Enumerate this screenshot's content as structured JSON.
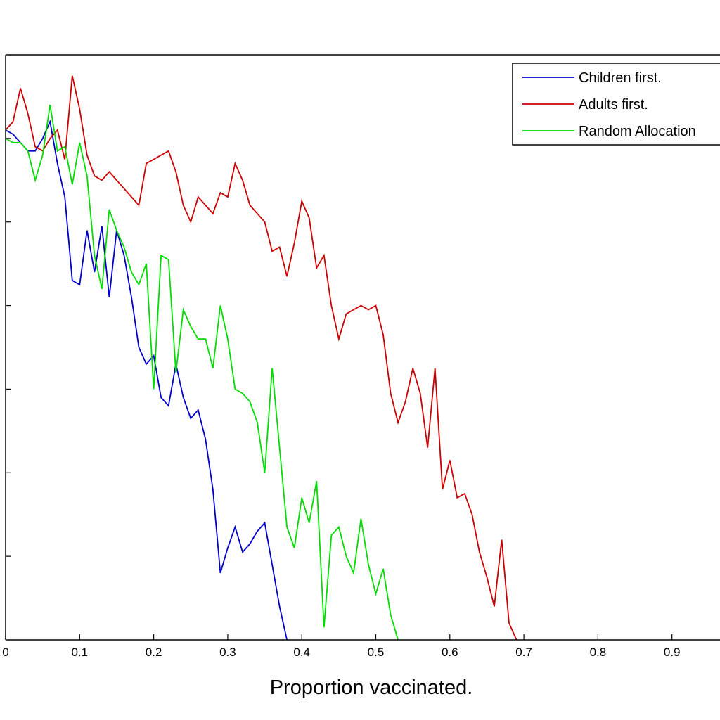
{
  "chart_data": {
    "type": "line",
    "title": "",
    "xlabel": "Proportion vaccinated.",
    "ylabel": "",
    "xlim": [
      0,
      1
    ],
    "ylim": [
      0,
      7
    ],
    "grid": false,
    "legend_position": "top-right",
    "x_ticks": [
      "0",
      "0.1",
      "0.2",
      "0.3",
      "0.4",
      "0.5",
      "0.6",
      "0.7",
      "0.8",
      "0.9"
    ],
    "series": [
      {
        "name": "Children first.",
        "color": "#0000cc",
        "points": [
          [
            0,
            6.1
          ],
          [
            0.01,
            6.05
          ],
          [
            0.02,
            5.95
          ],
          [
            0.03,
            5.85
          ],
          [
            0.04,
            5.85
          ],
          [
            0.05,
            6.0
          ],
          [
            0.06,
            6.2
          ],
          [
            0.07,
            5.7
          ],
          [
            0.08,
            5.3
          ],
          [
            0.09,
            4.3
          ],
          [
            0.1,
            4.25
          ],
          [
            0.11,
            4.9
          ],
          [
            0.12,
            4.4
          ],
          [
            0.13,
            4.95
          ],
          [
            0.14,
            4.1
          ],
          [
            0.15,
            4.9
          ],
          [
            0.16,
            4.6
          ],
          [
            0.17,
            4.1
          ],
          [
            0.18,
            3.5
          ],
          [
            0.19,
            3.3
          ],
          [
            0.2,
            3.4
          ],
          [
            0.21,
            2.9
          ],
          [
            0.22,
            2.8
          ],
          [
            0.23,
            3.3
          ],
          [
            0.24,
            2.9
          ],
          [
            0.25,
            2.65
          ],
          [
            0.26,
            2.75
          ],
          [
            0.27,
            2.4
          ],
          [
            0.28,
            1.8
          ],
          [
            0.29,
            0.8
          ],
          [
            0.3,
            1.1
          ],
          [
            0.31,
            1.35
          ],
          [
            0.32,
            1.05
          ],
          [
            0.33,
            1.15
          ],
          [
            0.34,
            1.3
          ],
          [
            0.35,
            1.4
          ],
          [
            0.36,
            0.9
          ],
          [
            0.37,
            0.4
          ],
          [
            0.38,
            0.0
          ]
        ]
      },
      {
        "name": "Adults first.",
        "color": "#cc0000",
        "points": [
          [
            0,
            6.1
          ],
          [
            0.01,
            6.2
          ],
          [
            0.02,
            6.6
          ],
          [
            0.03,
            6.3
          ],
          [
            0.04,
            5.9
          ],
          [
            0.05,
            5.85
          ],
          [
            0.06,
            6.0
          ],
          [
            0.07,
            6.1
          ],
          [
            0.08,
            5.75
          ],
          [
            0.09,
            6.75
          ],
          [
            0.1,
            6.35
          ],
          [
            0.11,
            5.8
          ],
          [
            0.12,
            5.55
          ],
          [
            0.13,
            5.5
          ],
          [
            0.14,
            5.6
          ],
          [
            0.15,
            5.5
          ],
          [
            0.16,
            5.4
          ],
          [
            0.17,
            5.3
          ],
          [
            0.18,
            5.2
          ],
          [
            0.19,
            5.7
          ],
          [
            0.2,
            5.75
          ],
          [
            0.21,
            5.8
          ],
          [
            0.22,
            5.85
          ],
          [
            0.23,
            5.6
          ],
          [
            0.24,
            5.2
          ],
          [
            0.25,
            5.0
          ],
          [
            0.26,
            5.3
          ],
          [
            0.27,
            5.2
          ],
          [
            0.28,
            5.1
          ],
          [
            0.29,
            5.35
          ],
          [
            0.3,
            5.3
          ],
          [
            0.31,
            5.7
          ],
          [
            0.32,
            5.5
          ],
          [
            0.33,
            5.2
          ],
          [
            0.34,
            5.1
          ],
          [
            0.35,
            5.0
          ],
          [
            0.36,
            4.65
          ],
          [
            0.37,
            4.7
          ],
          [
            0.38,
            4.35
          ],
          [
            0.39,
            4.75
          ],
          [
            0.4,
            5.25
          ],
          [
            0.41,
            5.05
          ],
          [
            0.42,
            4.45
          ],
          [
            0.43,
            4.6
          ],
          [
            0.44,
            4.0
          ],
          [
            0.45,
            3.6
          ],
          [
            0.46,
            3.9
          ],
          [
            0.47,
            3.95
          ],
          [
            0.48,
            4.0
          ],
          [
            0.49,
            3.95
          ],
          [
            0.5,
            4.0
          ],
          [
            0.51,
            3.65
          ],
          [
            0.52,
            2.95
          ],
          [
            0.53,
            2.6
          ],
          [
            0.54,
            2.85
          ],
          [
            0.55,
            3.25
          ],
          [
            0.56,
            2.95
          ],
          [
            0.57,
            2.3
          ],
          [
            0.58,
            3.25
          ],
          [
            0.59,
            1.8
          ],
          [
            0.6,
            2.15
          ],
          [
            0.61,
            1.7
          ],
          [
            0.62,
            1.75
          ],
          [
            0.63,
            1.5
          ],
          [
            0.64,
            1.05
          ],
          [
            0.65,
            0.75
          ],
          [
            0.66,
            0.4
          ],
          [
            0.67,
            1.2
          ],
          [
            0.68,
            0.2
          ],
          [
            0.69,
            0.0
          ]
        ]
      },
      {
        "name": "Random Allocation",
        "color": "#00dd00",
        "points": [
          [
            0,
            6.0
          ],
          [
            0.01,
            5.95
          ],
          [
            0.02,
            5.95
          ],
          [
            0.03,
            5.85
          ],
          [
            0.04,
            5.5
          ],
          [
            0.05,
            5.8
          ],
          [
            0.06,
            6.4
          ],
          [
            0.07,
            5.85
          ],
          [
            0.08,
            5.9
          ],
          [
            0.09,
            5.45
          ],
          [
            0.1,
            5.95
          ],
          [
            0.11,
            5.55
          ],
          [
            0.12,
            4.6
          ],
          [
            0.13,
            4.2
          ],
          [
            0.14,
            5.15
          ],
          [
            0.15,
            4.9
          ],
          [
            0.16,
            4.7
          ],
          [
            0.17,
            4.4
          ],
          [
            0.18,
            4.25
          ],
          [
            0.19,
            4.5
          ],
          [
            0.2,
            3.0
          ],
          [
            0.21,
            4.6
          ],
          [
            0.22,
            4.55
          ],
          [
            0.23,
            3.2
          ],
          [
            0.24,
            3.95
          ],
          [
            0.25,
            3.75
          ],
          [
            0.26,
            3.6
          ],
          [
            0.27,
            3.6
          ],
          [
            0.28,
            3.25
          ],
          [
            0.29,
            4.0
          ],
          [
            0.3,
            3.6
          ],
          [
            0.31,
            3.0
          ],
          [
            0.32,
            2.95
          ],
          [
            0.33,
            2.85
          ],
          [
            0.34,
            2.6
          ],
          [
            0.35,
            2.0
          ],
          [
            0.36,
            3.25
          ],
          [
            0.37,
            2.3
          ],
          [
            0.38,
            1.35
          ],
          [
            0.39,
            1.1
          ],
          [
            0.4,
            1.7
          ],
          [
            0.41,
            1.4
          ],
          [
            0.42,
            1.9
          ],
          [
            0.43,
            0.15
          ],
          [
            0.44,
            1.25
          ],
          [
            0.45,
            1.35
          ],
          [
            0.46,
            1.0
          ],
          [
            0.47,
            0.8
          ],
          [
            0.48,
            1.45
          ],
          [
            0.49,
            0.9
          ],
          [
            0.5,
            0.55
          ],
          [
            0.51,
            0.85
          ],
          [
            0.52,
            0.3
          ],
          [
            0.53,
            0.0
          ]
        ]
      }
    ]
  }
}
